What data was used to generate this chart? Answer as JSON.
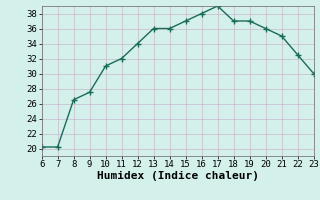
{
  "x": [
    6,
    7,
    8,
    9,
    10,
    11,
    12,
    13,
    14,
    15,
    16,
    17,
    18,
    19,
    20,
    21,
    22,
    23
  ],
  "y": [
    20.2,
    20.2,
    26.5,
    27.5,
    31.0,
    32.0,
    34.0,
    36.0,
    36.0,
    37.0,
    38.0,
    39.0,
    37.0,
    37.0,
    36.0,
    35.0,
    32.5,
    30.0
  ],
  "line_color": "#1a6b5a",
  "marker": "+",
  "marker_size": 4,
  "marker_lw": 1.0,
  "xlabel": "Humidex (Indice chaleur)",
  "xlim": [
    6,
    23
  ],
  "ylim": [
    19,
    39
  ],
  "yticks": [
    20,
    22,
    24,
    26,
    28,
    30,
    32,
    34,
    36,
    38
  ],
  "xticks": [
    6,
    7,
    8,
    9,
    10,
    11,
    12,
    13,
    14,
    15,
    16,
    17,
    18,
    19,
    20,
    21,
    22,
    23
  ],
  "bg_color": "#d4f0ea",
  "grid_color": "#c8b8cc",
  "xlabel_fontsize": 8,
  "tick_fontsize": 6.5,
  "line_width": 1.0
}
